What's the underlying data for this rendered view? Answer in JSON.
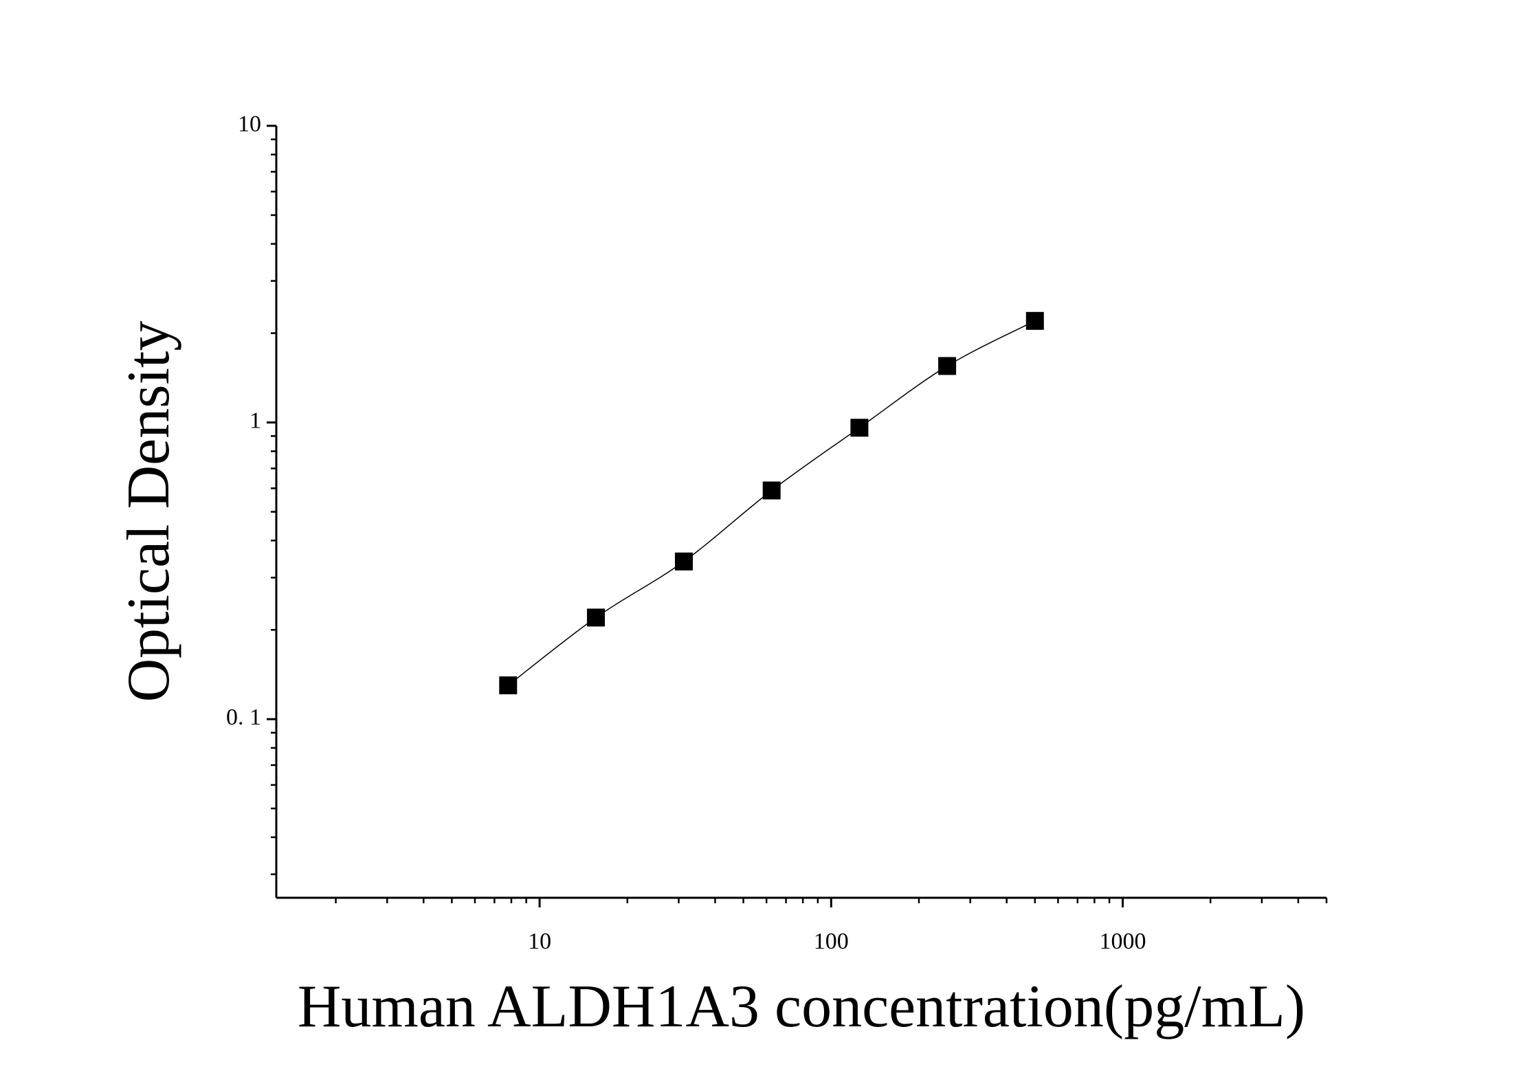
{
  "chart_data": {
    "type": "scatter",
    "x_label": "Human ALDH1A3 concentration(pg/mL)",
    "y_label": "Optical Density",
    "x": [
      7.8,
      15.6,
      31.25,
      62.5,
      125,
      250,
      500
    ],
    "series": [
      {
        "color": "#000000",
        "values": [
          0.13,
          0.22,
          0.34,
          0.59,
          0.96,
          1.55,
          2.2
        ]
      }
    ],
    "fit_curve": true,
    "xscale": "log",
    "yscale": "log",
    "xlim": [
      1.25,
      5000
    ],
    "ylim": [
      0.025,
      10
    ],
    "xticks": [
      10,
      100,
      1000
    ],
    "yticks": [
      {
        "value": 0.1,
        "label": "0. 1"
      },
      1,
      10
    ],
    "xticks_minor": [
      2,
      3,
      4,
      5,
      6,
      7,
      8,
      9,
      20,
      30,
      40,
      50,
      60,
      70,
      80,
      90,
      200,
      300,
      400,
      500,
      600,
      700,
      800,
      900,
      2000,
      3000,
      4000,
      5000
    ],
    "yticks_minor": [
      0.03,
      0.04,
      0.05,
      0.06,
      0.07,
      0.08,
      0.09,
      0.2,
      0.3,
      0.4,
      0.5,
      0.6,
      0.7,
      0.8,
      0.9,
      2,
      3,
      4,
      5,
      6,
      7,
      8,
      9
    ]
  }
}
